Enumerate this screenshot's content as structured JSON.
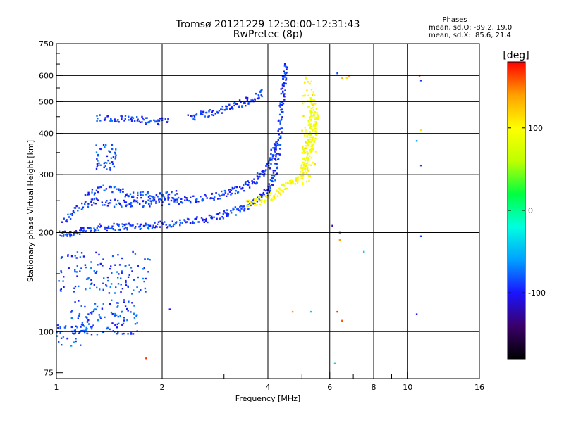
{
  "chart_data": {
    "type": "scatter",
    "title": "Tromsø 20121229 12:30:00-12:31:43",
    "subtitle": "RwPretec (8p)",
    "xlabel": "Frequency [MHz]",
    "ylabel": "Stationary phase Virtual Height [km]",
    "x_scale": "log",
    "y_scale": "log",
    "xlim": [
      1,
      16
    ],
    "ylim": [
      72,
      750
    ],
    "x_ticks": [
      1,
      2,
      4,
      6,
      8,
      10,
      16
    ],
    "x_tick_labels": [
      "1",
      "2",
      "4",
      "6",
      "8",
      "10",
      "16"
    ],
    "y_ticks": [
      75,
      100,
      200,
      300,
      400,
      500,
      600,
      750
    ],
    "y_tick_labels": [
      "75",
      "100",
      "200",
      "300",
      "400",
      "500",
      "600",
      "750"
    ],
    "grid": true,
    "stats": {
      "heading": "Phases",
      "o_line": "mean, sd,O: -89.2, 19.0",
      "x_line": "mean, sd,X:  85.6, 21.4"
    },
    "colorbar": {
      "label": "[deg]",
      "range": [
        -180,
        180
      ],
      "ticks": [
        100,
        0,
        -100
      ],
      "tick_labels": [
        "100",
        "0",
        "-100"
      ],
      "colors": [
        "#000000",
        "#3a006a",
        "#1a14ff",
        "#00a0ff",
        "#00ffe0",
        "#00ff40",
        "#c0ff00",
        "#ffff00",
        "#ffa000",
        "#ff0000"
      ]
    },
    "traces": [
      {
        "name": "",
        "phase": -90,
        "spread": 18,
        "points": [
          [
            1.02,
            198
          ],
          [
            1.1,
            199
          ],
          [
            1.2,
            203
          ],
          [
            1.3,
            207
          ],
          [
            1.45,
            208
          ],
          [
            1.6,
            209
          ],
          [
            1.8,
            210
          ],
          [
            2.0,
            212
          ],
          [
            2.3,
            215
          ],
          [
            2.6,
            219
          ],
          [
            2.9,
            225
          ],
          [
            3.2,
            232
          ],
          [
            3.5,
            242
          ],
          [
            3.8,
            256
          ],
          [
            4.0,
            268
          ],
          [
            4.15,
            290
          ],
          [
            4.25,
            330
          ],
          [
            4.3,
            380
          ],
          [
            4.35,
            450
          ],
          [
            4.4,
            520
          ],
          [
            4.45,
            580
          ],
          [
            4.5,
            640
          ]
        ]
      },
      {
        "name": "",
        "phase": -90,
        "spread": 18,
        "points": [
          [
            1.05,
            215
          ],
          [
            1.15,
            240
          ],
          [
            1.3,
            250
          ],
          [
            1.5,
            245
          ],
          [
            1.7,
            245
          ],
          [
            1.9,
            247
          ],
          [
            2.2,
            250
          ],
          [
            2.5,
            253
          ],
          [
            2.8,
            258
          ],
          [
            3.1,
            265
          ],
          [
            3.4,
            275
          ],
          [
            3.7,
            290
          ],
          [
            3.95,
            310
          ],
          [
            4.1,
            340
          ],
          [
            4.2,
            380
          ]
        ]
      },
      {
        "name": "",
        "phase": -85,
        "spread": 20,
        "points": [
          [
            1.2,
            260
          ],
          [
            1.4,
            275
          ],
          [
            1.6,
            262
          ],
          [
            1.8,
            260
          ],
          [
            2.0,
            258
          ],
          [
            2.2,
            262
          ]
        ]
      },
      {
        "name": "",
        "phase": 95,
        "spread": 15,
        "points": [
          [
            3.5,
            245
          ],
          [
            3.8,
            250
          ],
          [
            4.1,
            258
          ],
          [
            4.4,
            270
          ],
          [
            4.7,
            285
          ],
          [
            5.0,
            300
          ],
          [
            5.2,
            330
          ],
          [
            5.35,
            370
          ],
          [
            5.45,
            420
          ],
          [
            5.5,
            470
          ]
        ]
      },
      {
        "name": "",
        "phase": 90,
        "spread": 15,
        "points": [
          [
            5.0,
            310
          ],
          [
            5.15,
            360
          ],
          [
            5.25,
            410
          ],
          [
            5.3,
            460
          ],
          [
            5.35,
            520
          ]
        ]
      },
      {
        "name": "",
        "phase": -90,
        "spread": 18,
        "points": [
          [
            2.4,
            450
          ],
          [
            2.7,
            460
          ],
          [
            3.0,
            475
          ],
          [
            3.3,
            490
          ],
          [
            3.6,
            510
          ],
          [
            3.9,
            535
          ]
        ]
      },
      {
        "name": "",
        "phase": -90,
        "spread": 18,
        "points": [
          [
            1.3,
            445
          ],
          [
            1.5,
            445
          ],
          [
            1.7,
            440
          ],
          [
            1.9,
            435
          ],
          [
            2.1,
            440
          ]
        ]
      }
    ],
    "blobs": [
      {
        "name": "",
        "phase": -85,
        "fx": [
          1.28,
          1.48
        ],
        "hy": [
          310,
          370
        ],
        "count": 45
      },
      {
        "name": "",
        "phase": -85,
        "fx": [
          1.0,
          1.85
        ],
        "hy": [
          130,
          175
        ],
        "count": 120
      },
      {
        "name": "",
        "phase": -85,
        "fx": [
          1.1,
          1.7
        ],
        "hy": [
          98,
          125
        ],
        "count": 110
      },
      {
        "name": "",
        "phase": -80,
        "fx": [
          1.0,
          1.2
        ],
        "hy": [
          90,
          105
        ],
        "count": 30
      },
      {
        "name": "",
        "phase": 100,
        "fx": [
          5.0,
          5.5
        ],
        "hy": [
          280,
          600
        ],
        "count": 70
      }
    ],
    "outliers": [
      [
        6.3,
        610,
        -85
      ],
      [
        6.5,
        590,
        130
      ],
      [
        6.7,
        590,
        110
      ],
      [
        6.8,
        600,
        150
      ],
      [
        10.8,
        600,
        170
      ],
      [
        10.9,
        580,
        -90
      ],
      [
        10.9,
        410,
        110
      ],
      [
        10.9,
        320,
        -90
      ],
      [
        10.6,
        380,
        -60
      ],
      [
        6.4,
        200,
        160
      ],
      [
        6.4,
        190,
        140
      ],
      [
        6.1,
        210,
        -120
      ],
      [
        7.5,
        175,
        -40
      ],
      [
        10.9,
        195,
        -90
      ],
      [
        6.3,
        115,
        170
      ],
      [
        4.7,
        115,
        140
      ],
      [
        5.3,
        115,
        -40
      ],
      [
        6.2,
        80,
        -40
      ],
      [
        10.6,
        113,
        -100
      ],
      [
        6.5,
        108,
        160
      ],
      [
        1.8,
        83,
        170
      ],
      [
        2.1,
        117,
        -100
      ]
    ]
  }
}
